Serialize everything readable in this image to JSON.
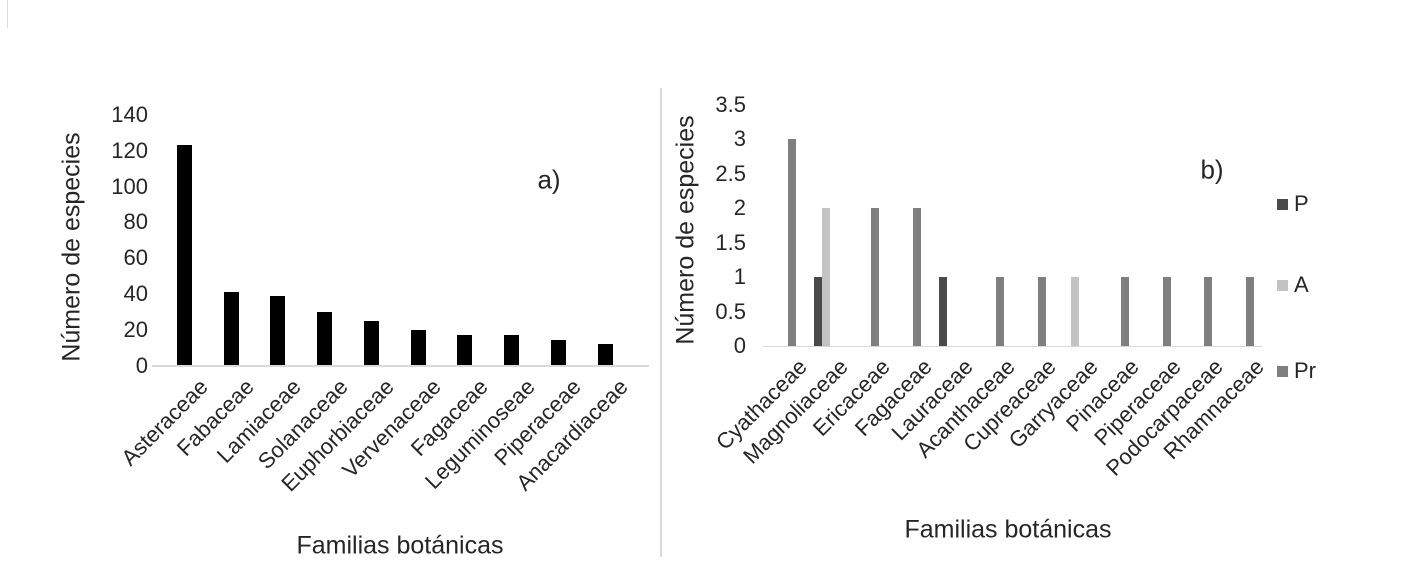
{
  "colors": {
    "axis_line": "#d9d9d9",
    "text": "#262626",
    "chart_a_bar": "#000000"
  },
  "chart_data": [
    {
      "id": "a",
      "type": "bar",
      "panel_label": "a)",
      "ylabel": "Número de especies",
      "xlabel": "Familias botánicas",
      "categories": [
        "Asteraceae",
        "Fabaceae",
        "Lamiaceae",
        "Solanaceae",
        "Euphorbiaceae",
        "Vervenaceae",
        "Fagaceae",
        "Leguminoseae",
        "Piperaceae",
        "Anacardiaceae"
      ],
      "values": [
        123,
        41,
        39,
        30,
        25,
        20,
        17,
        17,
        14,
        12
      ],
      "bar_color": "#000000",
      "ylim": [
        0,
        140
      ],
      "ytick_step": 20,
      "grid": false,
      "legend": null
    },
    {
      "id": "b",
      "type": "bar",
      "panel_label": "b)",
      "ylabel": "Número de especies",
      "xlabel": "Familias botánicas",
      "categories": [
        "Cyathaceae",
        "Magnoliaceae",
        "Ericaceae",
        "Fagaceae",
        "Lauraceae",
        "Acanthaceae",
        "Cupreaceae",
        "Garryaceae",
        "Pinaceae",
        "Piperaceae",
        "Podocarpaceae",
        "Rhamnaceae"
      ],
      "series": [
        {
          "name": "P",
          "color": "#4a4a4a",
          "values": [
            0,
            1,
            0,
            0,
            1,
            0,
            0,
            0,
            0,
            0,
            0,
            0
          ]
        },
        {
          "name": "A",
          "color": "#c3c3c3",
          "values": [
            0,
            2,
            0,
            0,
            0,
            0,
            0,
            1,
            0,
            0,
            0,
            0
          ]
        },
        {
          "name": "Pr",
          "color": "#7f7f7f",
          "values": [
            3,
            0,
            2,
            2,
            0,
            1,
            1,
            0,
            1,
            1,
            1,
            1
          ]
        }
      ],
      "ylim": [
        0,
        3.5
      ],
      "ytick_step": 0.5,
      "grid": false,
      "legend_position": "right"
    }
  ]
}
